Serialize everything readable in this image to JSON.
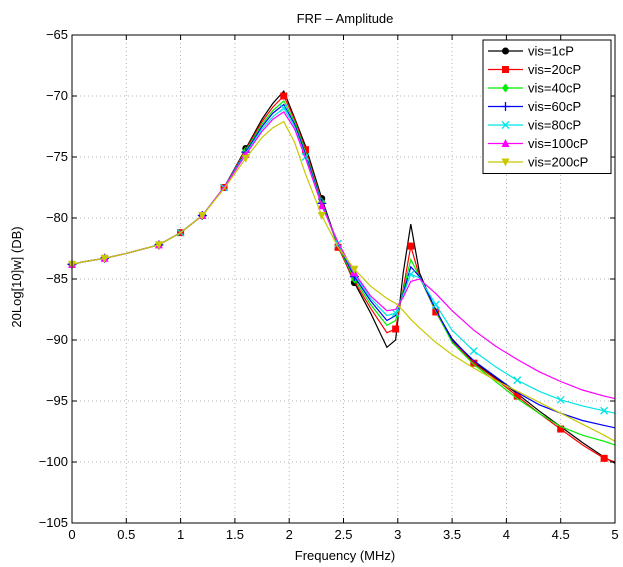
{
  "chart_data": {
    "type": "line",
    "title": "FRF – Amplitude",
    "xlabel": "Frequency (MHz)",
    "ylabel": "20Log[10]w] (DB)",
    "xlim": [
      0,
      5
    ],
    "ylim": [
      -105,
      -65
    ],
    "xticks": [
      0,
      0.5,
      1,
      1.5,
      2,
      2.5,
      3,
      3.5,
      4,
      4.5,
      5
    ],
    "yticks": [
      -105,
      -100,
      -95,
      -90,
      -85,
      -80,
      -75,
      -70,
      -65
    ],
    "grid": true,
    "legend_position": "top-right",
    "series": [
      {
        "name": "vis=1cP",
        "color": "#000000",
        "marker": "circle",
        "x": [
          0,
          0.1,
          0.3,
          0.5,
          0.8,
          1.0,
          1.2,
          1.4,
          1.6,
          1.75,
          1.85,
          1.95,
          2.05,
          2.15,
          2.3,
          2.45,
          2.6,
          2.75,
          2.9,
          2.98,
          3.05,
          3.12,
          3.2,
          3.35,
          3.5,
          3.7,
          3.9,
          4.1,
          4.3,
          4.5,
          4.7,
          4.9,
          5.0
        ],
        "y": [
          -83.8,
          -83.6,
          -83.3,
          -82.9,
          -82.2,
          -81.2,
          -79.8,
          -77.5,
          -74.3,
          -71.9,
          -70.6,
          -69.6,
          -71.8,
          -74.1,
          -78.4,
          -82.3,
          -85.3,
          -87.8,
          -90.6,
          -90.0,
          -84.5,
          -80.5,
          -84.5,
          -87.6,
          -89.9,
          -91.8,
          -93.1,
          -94.4,
          -95.8,
          -97.1,
          -98.4,
          -99.6,
          -100.1
        ]
      },
      {
        "name": "vis=20cP",
        "color": "#ff0000",
        "marker": "square",
        "x": [
          0,
          0.1,
          0.3,
          0.5,
          0.8,
          1.0,
          1.2,
          1.4,
          1.6,
          1.75,
          1.85,
          1.95,
          2.05,
          2.15,
          2.3,
          2.45,
          2.6,
          2.75,
          2.9,
          2.98,
          3.05,
          3.12,
          3.2,
          3.35,
          3.5,
          3.7,
          3.9,
          4.1,
          4.3,
          4.5,
          4.7,
          4.9,
          5.0
        ],
        "y": [
          -83.8,
          -83.6,
          -83.3,
          -82.9,
          -82.2,
          -81.2,
          -79.8,
          -77.5,
          -74.4,
          -72.1,
          -70.9,
          -70.0,
          -71.9,
          -74.4,
          -78.6,
          -82.4,
          -85.2,
          -87.4,
          -89.4,
          -89.1,
          -85.8,
          -82.3,
          -84.8,
          -87.7,
          -90.1,
          -91.9,
          -93.2,
          -94.6,
          -96.0,
          -97.3,
          -98.6,
          -99.7,
          -100.0
        ]
      },
      {
        "name": "vis=40cP",
        "color": "#00ee00",
        "marker": "diamond",
        "x": [
          0,
          0.1,
          0.3,
          0.5,
          0.8,
          1.0,
          1.2,
          1.4,
          1.6,
          1.75,
          1.85,
          1.95,
          2.05,
          2.15,
          2.3,
          2.45,
          2.6,
          2.75,
          2.9,
          2.98,
          3.05,
          3.12,
          3.2,
          3.35,
          3.5,
          3.7,
          3.9,
          4.1,
          4.3,
          4.5,
          4.7,
          4.9,
          5.0
        ],
        "y": [
          -83.8,
          -83.6,
          -83.3,
          -82.9,
          -82.2,
          -81.2,
          -79.8,
          -77.5,
          -74.5,
          -72.3,
          -71.2,
          -70.4,
          -72.1,
          -74.6,
          -78.7,
          -82.3,
          -85.0,
          -87.1,
          -88.8,
          -88.4,
          -86.0,
          -83.4,
          -84.8,
          -87.6,
          -90.2,
          -92.0,
          -93.4,
          -94.8,
          -96.0,
          -97.1,
          -97.8,
          -98.3,
          -98.6
        ]
      },
      {
        "name": "vis=60cP",
        "color": "#0000ff",
        "marker": "plus",
        "x": [
          0,
          0.1,
          0.3,
          0.5,
          0.8,
          1.0,
          1.2,
          1.4,
          1.6,
          1.75,
          1.85,
          1.95,
          2.05,
          2.15,
          2.3,
          2.45,
          2.6,
          2.75,
          2.9,
          2.98,
          3.05,
          3.12,
          3.2,
          3.35,
          3.5,
          3.7,
          3.9,
          4.1,
          4.3,
          4.5,
          4.7,
          4.9,
          5.0
        ],
        "y": [
          -83.8,
          -83.6,
          -83.3,
          -82.9,
          -82.2,
          -81.2,
          -79.8,
          -77.5,
          -74.6,
          -72.5,
          -71.4,
          -70.7,
          -72.3,
          -74.8,
          -78.8,
          -82.2,
          -84.8,
          -86.8,
          -88.4,
          -88.0,
          -86.2,
          -84.0,
          -84.8,
          -87.5,
          -90.0,
          -91.7,
          -93.0,
          -94.3,
          -95.3,
          -96.0,
          -96.6,
          -97.0,
          -97.2
        ]
      },
      {
        "name": "vis=80cP",
        "color": "#00e5e5",
        "marker": "x",
        "x": [
          0,
          0.1,
          0.3,
          0.5,
          0.8,
          1.0,
          1.2,
          1.4,
          1.6,
          1.75,
          1.85,
          1.95,
          2.05,
          2.15,
          2.3,
          2.45,
          2.6,
          2.75,
          2.9,
          2.98,
          3.05,
          3.12,
          3.2,
          3.35,
          3.5,
          3.7,
          3.9,
          4.1,
          4.3,
          4.5,
          4.7,
          4.9,
          5.0
        ],
        "y": [
          -83.8,
          -83.6,
          -83.3,
          -82.9,
          -82.2,
          -81.2,
          -79.8,
          -77.5,
          -74.7,
          -72.7,
          -71.7,
          -71.0,
          -72.5,
          -75.0,
          -78.9,
          -82.1,
          -84.6,
          -86.6,
          -88.0,
          -87.8,
          -86.3,
          -84.6,
          -84.9,
          -87.1,
          -89.2,
          -90.9,
          -92.2,
          -93.3,
          -94.2,
          -94.9,
          -95.4,
          -95.8,
          -96.0
        ]
      },
      {
        "name": "vis=100cP",
        "color": "#ff00ff",
        "marker": "triangle-up",
        "x": [
          0,
          0.1,
          0.3,
          0.5,
          0.8,
          1.0,
          1.2,
          1.4,
          1.6,
          1.75,
          1.85,
          1.95,
          2.05,
          2.15,
          2.3,
          2.45,
          2.6,
          2.75,
          2.9,
          2.98,
          3.05,
          3.12,
          3.2,
          3.35,
          3.5,
          3.7,
          3.9,
          4.1,
          4.3,
          4.5,
          4.7,
          4.9,
          5.0
        ],
        "y": [
          -83.8,
          -83.6,
          -83.3,
          -82.9,
          -82.2,
          -81.2,
          -79.8,
          -77.5,
          -74.8,
          -72.9,
          -71.9,
          -71.3,
          -72.7,
          -75.1,
          -79.0,
          -82.0,
          -84.5,
          -86.4,
          -87.6,
          -87.5,
          -86.5,
          -85.2,
          -85.0,
          -86.2,
          -87.6,
          -89.2,
          -90.5,
          -91.6,
          -92.6,
          -93.4,
          -94.1,
          -94.6,
          -94.8
        ]
      },
      {
        "name": "vis=200cP",
        "color": "#c8c800",
        "marker": "triangle-down",
        "x": [
          0,
          0.1,
          0.3,
          0.5,
          0.8,
          1.0,
          1.2,
          1.4,
          1.6,
          1.75,
          1.85,
          1.95,
          2.05,
          2.15,
          2.3,
          2.45,
          2.6,
          2.75,
          2.9,
          2.98,
          3.05,
          3.12,
          3.2,
          3.35,
          3.5,
          3.7,
          3.9,
          4.1,
          4.3,
          4.5,
          4.7,
          4.9,
          5.0
        ],
        "y": [
          -83.8,
          -83.6,
          -83.3,
          -82.9,
          -82.2,
          -81.2,
          -79.8,
          -77.6,
          -75.1,
          -73.4,
          -72.6,
          -72.1,
          -73.8,
          -76.4,
          -79.8,
          -82.4,
          -84.2,
          -85.6,
          -86.6,
          -87.0,
          -87.6,
          -88.3,
          -89.0,
          -90.2,
          -91.2,
          -92.3,
          -93.3,
          -94.2,
          -95.1,
          -96.0,
          -96.9,
          -97.8,
          -98.3
        ]
      }
    ]
  }
}
